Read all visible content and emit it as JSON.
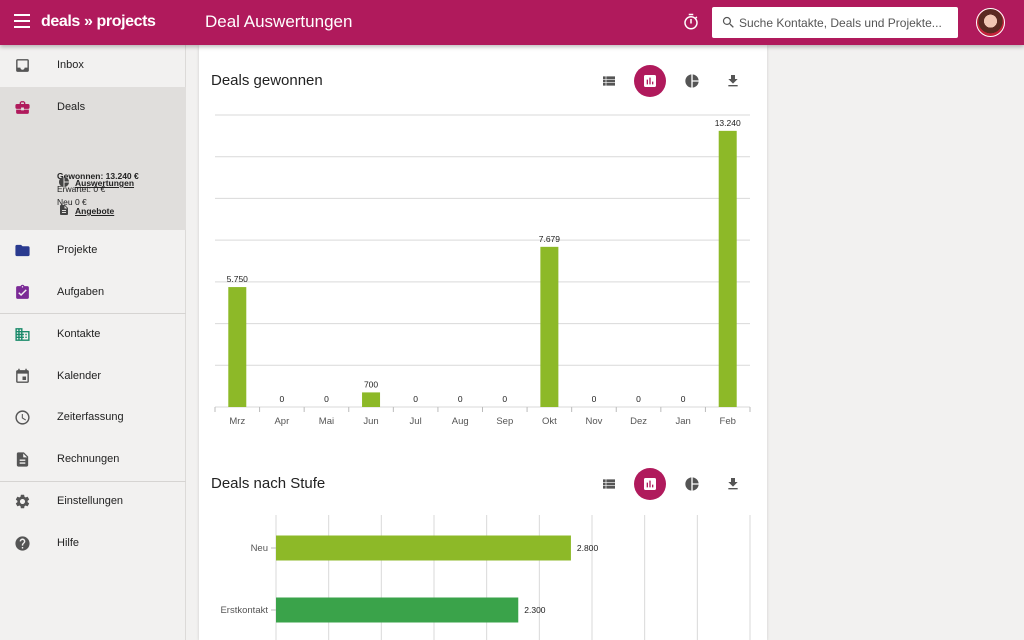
{
  "header": {
    "logo": "deals » projects",
    "title": "Deal Auswertungen",
    "search_placeholder": "Suche Kontakte, Deals und Projekte..."
  },
  "sidebar": {
    "items": [
      {
        "label": "Inbox",
        "icon": "inbox-icon"
      },
      {
        "label": "Deals",
        "icon": "briefcase-icon"
      },
      {
        "label": "Projekte",
        "icon": "folder-icon"
      },
      {
        "label": "Aufgaben",
        "icon": "task-icon"
      },
      {
        "label": "Kontakte",
        "icon": "contacts-icon"
      },
      {
        "label": "Kalender",
        "icon": "calendar-icon"
      },
      {
        "label": "Zeiterfassung",
        "icon": "clock-icon"
      },
      {
        "label": "Rechnungen",
        "icon": "invoice-icon"
      },
      {
        "label": "Einstellungen",
        "icon": "gear-icon"
      },
      {
        "label": "Hilfe",
        "icon": "help-icon"
      }
    ],
    "deals": {
      "won_label": "Gewonnen:",
      "won_value": "13.240 €",
      "expected": "Erwartet: 0 €",
      "new": "Neu 0 €",
      "links": [
        {
          "label": "Auswertungen",
          "icon": "pie-chart-icon"
        },
        {
          "label": "Angebote",
          "icon": "document-icon"
        }
      ]
    }
  },
  "colors": {
    "brand": "#b01a5c",
    "bar_green": "#8db928",
    "bar_dark_green": "#3aa34a"
  },
  "sections": [
    {
      "title": "Deals gewonnen"
    },
    {
      "title": "Deals nach Stufe"
    }
  ],
  "chart_data": [
    {
      "type": "bar",
      "title": "Deals gewonnen",
      "categories": [
        "Mrz",
        "Apr",
        "Mai",
        "Jun",
        "Jul",
        "Aug",
        "Sep",
        "Okt",
        "Nov",
        "Dez",
        "Jan",
        "Feb"
      ],
      "values": [
        5750,
        0,
        0,
        700,
        0,
        0,
        0,
        7679,
        0,
        0,
        0,
        13240
      ],
      "value_labels": [
        "5.750",
        "0",
        "0",
        "700",
        "0",
        "0",
        "0",
        "7.679",
        "0",
        "0",
        "0",
        "13.240"
      ],
      "ylim": [
        0,
        14000
      ],
      "grid": true
    },
    {
      "type": "bar",
      "orientation": "horizontal",
      "title": "Deals nach Stufe",
      "categories": [
        "Neu",
        "Erstkontakt"
      ],
      "values": [
        2800,
        2300
      ],
      "value_labels": [
        "2.800",
        "2.300"
      ],
      "colors": [
        "#8db928",
        "#3aa34a"
      ],
      "xlim": [
        0,
        4500
      ],
      "grid": true
    }
  ]
}
